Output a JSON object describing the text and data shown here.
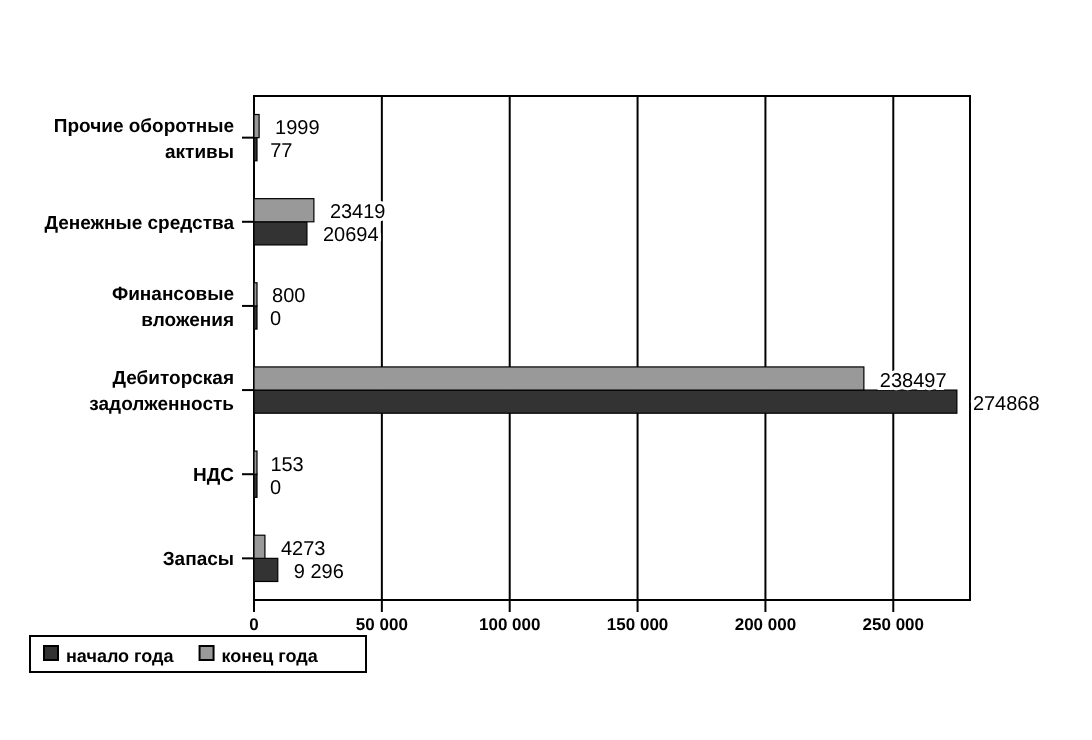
{
  "chart_data": {
    "type": "bar",
    "orientation": "horizontal",
    "categories": [
      "Прочие оборотные активы",
      "Денежные средства",
      "Финансовые вложения",
      "Дебиторская задолженность",
      "НДС",
      "Запасы"
    ],
    "series": [
      {
        "name": "начало года",
        "color": "#333333",
        "values": [
          77,
          20694,
          0,
          274868,
          0,
          9296
        ],
        "value_labels": [
          "77",
          "20694",
          "0",
          "274868",
          "0",
          "9 296"
        ]
      },
      {
        "name": "конец года",
        "color": "#999999",
        "values": [
          1999,
          23419,
          800,
          238497,
          153,
          4273
        ],
        "value_labels": [
          "1999",
          "23419",
          "800",
          "238497",
          "153",
          "4273"
        ]
      }
    ],
    "xlim": [
      0,
      280000
    ],
    "xticks": [
      0,
      {
        "value": 50000,
        "label": "50 000"
      },
      {
        "value": 100000,
        "label": "100 000"
      },
      {
        "value": 150000,
        "label": "150 000"
      },
      {
        "value": 200000,
        "label": "200 000"
      },
      {
        "value": 250000,
        "label": "250 000"
      }
    ],
    "grid": "x",
    "legend": "bottom left"
  }
}
